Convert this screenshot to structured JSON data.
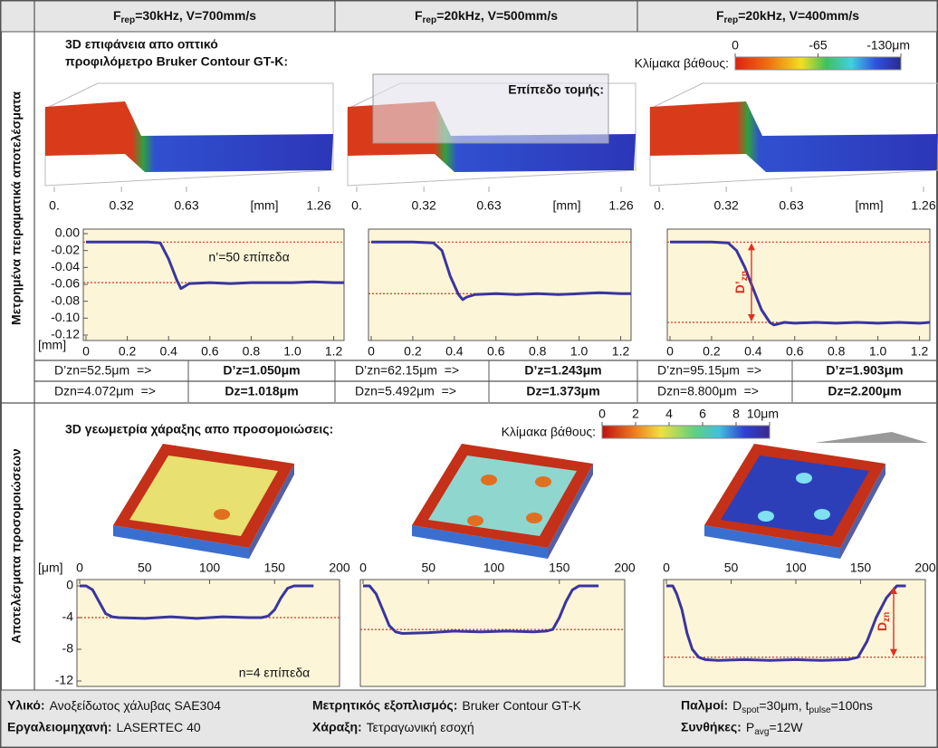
{
  "header": {
    "columns": [
      [
        "F",
        "rep",
        "=30kHz, V=700mm/s"
      ],
      [
        "F",
        "rep",
        "=20kHz, V=500mm/s"
      ],
      [
        "F",
        "rep",
        "=20kHz, V=400mm/s"
      ]
    ]
  },
  "side_labels": [
    "Μετρημένα πειραματικά αποτελέσματα",
    "Αποτελέσματα προσομοιώσεων"
  ],
  "measured_section": {
    "title_lines": [
      "3D επιφάνεια απο οπτικό",
      "προφιλόμετρο Bruker Contour GT-K:"
    ],
    "scale_label": "Κλίμακα βάθους:",
    "scale_ticks": [
      0,
      -65,
      {
        "value": -130,
        "label": "-130μm"
      }
    ],
    "plane_label": "Επίπεδο τομής:",
    "surface_axes": [
      {
        "ticks": [
          {
            "value": 0,
            "label": "0."
          },
          0.32,
          0.63,
          1.26
        ],
        "label": "[mm]"
      },
      {
        "ticks": [
          {
            "value": 0,
            "label": "0."
          },
          0.32,
          0.63,
          1.26
        ],
        "label": "[mm]"
      },
      {
        "ticks": [
          {
            "value": 0,
            "label": "0."
          },
          0.32,
          0.63,
          1.26
        ],
        "label": "[mm]"
      }
    ]
  },
  "simulation_section": {
    "title": "3D γεωμετρία χάραξης απο προσομοιώσεις:",
    "scale_label": "Κλίμακα βάθους:",
    "scale_ticks": [
      0,
      2,
      4,
      6,
      8,
      {
        "value": 10,
        "label": "10μm"
      }
    ]
  },
  "chart_data": [
    {
      "type": "line",
      "x": [
        0,
        0.1,
        0.2,
        0.3,
        0.36,
        0.4,
        0.44,
        0.46,
        0.5,
        0.6,
        0.7,
        0.8,
        0.9,
        1.0,
        1.1,
        1.2,
        1.25
      ],
      "values": [
        -0.01,
        -0.01,
        -0.01,
        -0.01,
        -0.011,
        -0.03,
        -0.055,
        -0.065,
        -0.059,
        -0.058,
        -0.059,
        -0.058,
        -0.058,
        -0.058,
        -0.057,
        -0.058,
        -0.058
      ],
      "color": "#3a35a0",
      "xlim": [
        0,
        1.25
      ],
      "ylim": [
        -0.12,
        0
      ],
      "xticks": [
        0,
        0.2,
        0.4,
        0.6,
        0.8,
        {
          "value": 1,
          "label": "1.0"
        },
        1.2
      ],
      "yticks": [
        {
          "value": 0,
          "label": "0.00"
        },
        -0.02,
        -0.04,
        -0.06,
        -0.08,
        {
          "value": -0.1,
          "label": "-0.10"
        },
        -0.12
      ],
      "axis_unit": "[mm]",
      "reference_lines": [
        -0.01,
        -0.058
      ],
      "reference_color": "#e03020",
      "annotation": "n’=50 επίπεδα"
    },
    {
      "type": "line",
      "x": [
        0,
        0.1,
        0.2,
        0.3,
        0.34,
        0.38,
        0.42,
        0.44,
        0.46,
        0.5,
        0.6,
        0.7,
        0.8,
        0.9,
        1.0,
        1.1,
        1.2,
        1.25
      ],
      "values": [
        -0.01,
        -0.01,
        -0.01,
        -0.011,
        -0.02,
        -0.05,
        -0.072,
        -0.078,
        -0.075,
        -0.072,
        -0.071,
        -0.072,
        -0.071,
        -0.072,
        -0.071,
        -0.07,
        -0.071,
        -0.071
      ],
      "color": "#3a35a0",
      "xlim": [
        0,
        1.25
      ],
      "ylim": [
        -0.12,
        0
      ],
      "xticks": [
        0,
        0.2,
        0.4,
        0.6,
        0.8,
        {
          "value": 1,
          "label": "1.0"
        },
        1.2
      ],
      "reference_lines": [
        -0.01,
        -0.071
      ],
      "reference_color": "#e03020"
    },
    {
      "type": "line",
      "x": [
        0,
        0.1,
        0.2,
        0.28,
        0.32,
        0.36,
        0.4,
        0.44,
        0.48,
        0.5,
        0.55,
        0.6,
        0.7,
        0.8,
        0.9,
        1.0,
        1.1,
        1.2,
        1.25
      ],
      "values": [
        -0.01,
        -0.01,
        -0.01,
        -0.011,
        -0.02,
        -0.04,
        -0.065,
        -0.09,
        -0.105,
        -0.108,
        -0.105,
        -0.106,
        -0.105,
        -0.106,
        -0.105,
        -0.106,
        -0.105,
        -0.106,
        -0.105
      ],
      "color": "#3a35a0",
      "xlim": [
        0,
        1.25
      ],
      "ylim": [
        -0.12,
        0
      ],
      "xticks": [
        0,
        0.2,
        0.4,
        0.6,
        0.8,
        {
          "value": 1,
          "label": "1.0"
        },
        1.2
      ],
      "reference_lines": [
        -0.01,
        -0.105
      ],
      "reference_color": "#e03020",
      "dimension_label": [
        "D’",
        "zn"
      ]
    },
    {
      "type": "line",
      "x": [
        0,
        5,
        10,
        15,
        20,
        25,
        30,
        50,
        70,
        90,
        110,
        130,
        140,
        145,
        150,
        155,
        160,
        165,
        180
      ],
      "values": [
        0,
        0,
        -0.5,
        -2,
        -3.5,
        -3.9,
        -4,
        -4.1,
        -3.9,
        -4.1,
        -3.9,
        -4,
        -4,
        -3.8,
        -3,
        -1.5,
        -0.3,
        0,
        0
      ],
      "color": "#3a35a0",
      "xlim": [
        0,
        200
      ],
      "ylim": [
        -12,
        0
      ],
      "xticks": [
        0,
        50,
        100,
        150,
        200
      ],
      "yticks": [
        0,
        -4,
        -8,
        -12
      ],
      "axis_unit": "[μm]",
      "reference_lines": [
        -4
      ],
      "reference_color": "#e03020",
      "annotation": "n=4 επίπεδα"
    },
    {
      "type": "line",
      "x": [
        0,
        5,
        10,
        15,
        20,
        25,
        30,
        50,
        70,
        90,
        110,
        130,
        140,
        145,
        150,
        155,
        160,
        165,
        180
      ],
      "values": [
        0,
        0,
        -1,
        -3,
        -5,
        -5.8,
        -6,
        -5.9,
        -5.7,
        -5.8,
        -5.7,
        -5.8,
        -5.7,
        -5.5,
        -4,
        -2,
        -0.5,
        0,
        0
      ],
      "color": "#3a35a0",
      "xlim": [
        0,
        200
      ],
      "ylim": [
        -12,
        0
      ],
      "xticks": [
        0,
        50,
        100,
        150,
        200
      ],
      "reference_lines": [
        -5.5
      ],
      "reference_color": "#e03020"
    },
    {
      "type": "line",
      "x": [
        0,
        5,
        8,
        12,
        16,
        20,
        25,
        30,
        40,
        60,
        80,
        100,
        120,
        140,
        148,
        155,
        162,
        170,
        178,
        185
      ],
      "values": [
        0,
        0,
        -1,
        -3,
        -6,
        -8,
        -9,
        -9.3,
        -9.4,
        -9.3,
        -9.4,
        -9.3,
        -9.4,
        -9.3,
        -9,
        -7,
        -4,
        -1.5,
        0,
        0
      ],
      "color": "#3a35a0",
      "xlim": [
        0,
        200
      ],
      "ylim": [
        -12,
        0
      ],
      "xticks": [
        0,
        50,
        100,
        150,
        200
      ],
      "reference_lines": [
        -9
      ],
      "reference_color": "#e03020",
      "dimension_label": [
        "D",
        "zn"
      ]
    }
  ],
  "results_table": {
    "rows": [
      [
        "D’zn=52.5μm  =>",
        "D’z=1.050μm",
        "D’zn=62.15μm  =>",
        "D’z=1.243μm",
        "D’zn=95.15μm  =>",
        "D’z=1.903μm"
      ],
      [
        "Dzn=4.072μm  =>",
        "Dz=1.018μm",
        "Dzn=5.492μm  =>",
        "Dz=1.373μm",
        "Dzn=8.800μm  =>",
        "Dz=2.200μm"
      ]
    ]
  },
  "footer": {
    "rows": [
      [
        {
          "label": "Υλικό:",
          "text": [
            "Ανοξείδωτος χάλυβας SAE304"
          ]
        },
        {
          "label": "Μετρητικός εξοπλισμός:",
          "text": [
            "Bruker Contour GT-K"
          ]
        },
        {
          "label": "Παλμοί:",
          "text": [
            "D",
            "spot",
            "=30μm, t",
            "pulse",
            "=100ns"
          ]
        }
      ],
      [
        {
          "label": "Εργαλειομηχανή:",
          "text": [
            "LASERTEC 40"
          ]
        },
        {
          "label": "Χάραξη:",
          "text": [
            "Τετραγωνική εσοχή"
          ]
        },
        {
          "label": "Συνθήκες:",
          "text": [
            "P",
            "avg",
            "=12W"
          ]
        }
      ]
    ]
  }
}
